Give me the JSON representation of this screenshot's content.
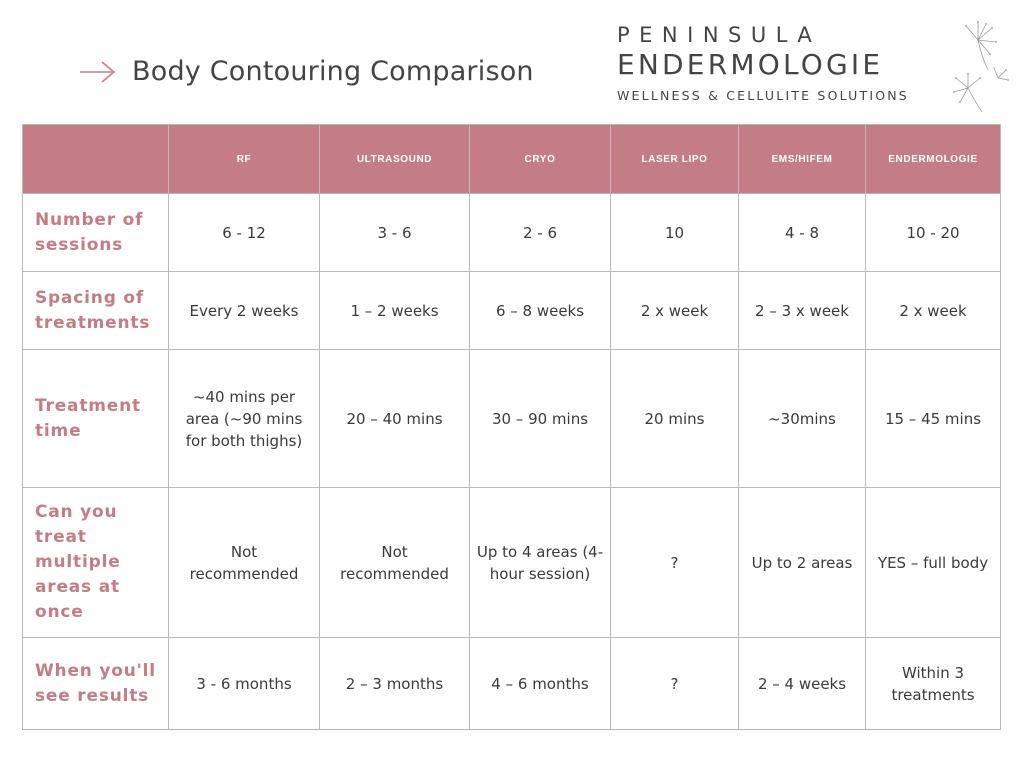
{
  "header": {
    "title": "Body Contouring Comparison",
    "arrow_icon": "arrow-right-icon",
    "brand": {
      "line1": "PENINSULA",
      "line2": "ENDERMOLOGIE",
      "tagline": "WELLNESS & CELLULITE SOLUTIONS",
      "decoration_icon": "dandelion-icon"
    }
  },
  "colors": {
    "accent": "#c47c86",
    "text": "#3a3a3a",
    "border": "#b9b9b9"
  },
  "table": {
    "columns": [
      "RF",
      "ULTRASOUND",
      "CRYO",
      "LASER LIPO",
      "EMS/HIFEM",
      "ENDERMOLOGIE"
    ],
    "rows": [
      {
        "label": "Number of sessions",
        "cells": [
          "6 - 12",
          "3 - 6",
          "2 - 6",
          "10",
          "4 - 8",
          "10 - 20"
        ]
      },
      {
        "label": "Spacing of treatments",
        "cells": [
          "Every 2 weeks",
          "1 – 2 weeks",
          "6 – 8 weeks",
          "2 x week",
          "2 – 3 x week",
          "2 x week"
        ]
      },
      {
        "label": "Treatment time",
        "cells": [
          "~40 mins per area (~90 mins for both thighs)",
          "20 – 40 mins",
          "30 – 90 mins",
          "20 mins",
          "~30mins",
          "15 – 45 mins"
        ]
      },
      {
        "label": "Can you treat multiple areas at once",
        "cells": [
          "Not recommended",
          "Not recommended",
          "Up to 4 areas (4-hour session)",
          "?",
          "Up to 2 areas",
          "YES – full body"
        ]
      },
      {
        "label": "When you'll see results",
        "cells": [
          "3 - 6 months",
          "2 – 3 months",
          "4 – 6 months",
          "?",
          "2 – 4 weeks",
          "Within 3 treatments"
        ]
      }
    ]
  }
}
